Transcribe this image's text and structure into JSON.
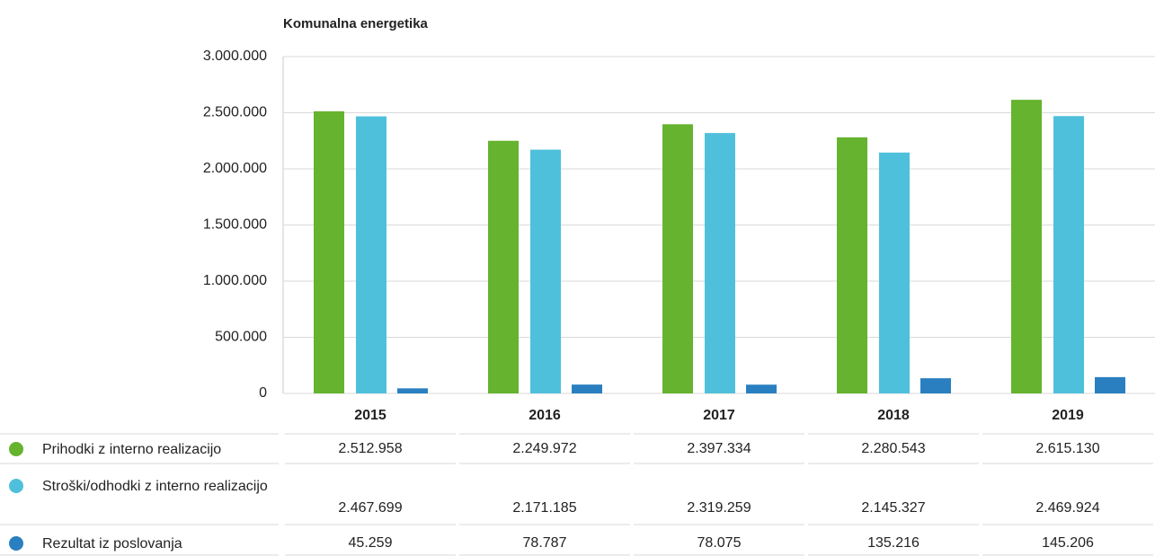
{
  "chart_data": {
    "type": "bar",
    "title": "Komunalna energetika",
    "categories": [
      "2015",
      "2016",
      "2017",
      "2018",
      "2019"
    ],
    "series": [
      {
        "name": "Prihodki z interno realizacijo",
        "color": "#65b32e",
        "values": [
          2512958,
          2249972,
          2397334,
          2280543,
          2615130
        ],
        "value_labels": [
          "2.512.958",
          "2.249.972",
          "2.397.334",
          "2.280.543",
          "2.615.130"
        ]
      },
      {
        "name": "Stroški/odhodki z interno realizacijo",
        "color": "#4fc0dc",
        "values": [
          2467699,
          2171185,
          2319259,
          2145327,
          2469924
        ],
        "value_labels": [
          "2.467.699",
          "2.171.185",
          "2.319.259",
          "2.145.327",
          "2.469.924"
        ]
      },
      {
        "name": "Rezultat iz poslovanja",
        "color": "#2a7fc1",
        "values": [
          45259,
          78787,
          78075,
          135216,
          145206
        ],
        "value_labels": [
          "45.259",
          "78.787",
          "78.075",
          "135.216",
          "145.206"
        ]
      }
    ],
    "ylim": [
      0,
      3000000
    ],
    "yticks": [
      0,
      {
        "value": 500000,
        "label": "500.000"
      },
      {
        "value": 1000000,
        "label": "1.000.000"
      },
      {
        "value": 1500000,
        "label": "1.500.000"
      },
      {
        "value": 2000000,
        "label": "2.000.000"
      },
      {
        "value": 2500000,
        "label": "2.500.000"
      },
      {
        "value": 3000000,
        "label": "3.000.000"
      }
    ],
    "grid": true
  }
}
